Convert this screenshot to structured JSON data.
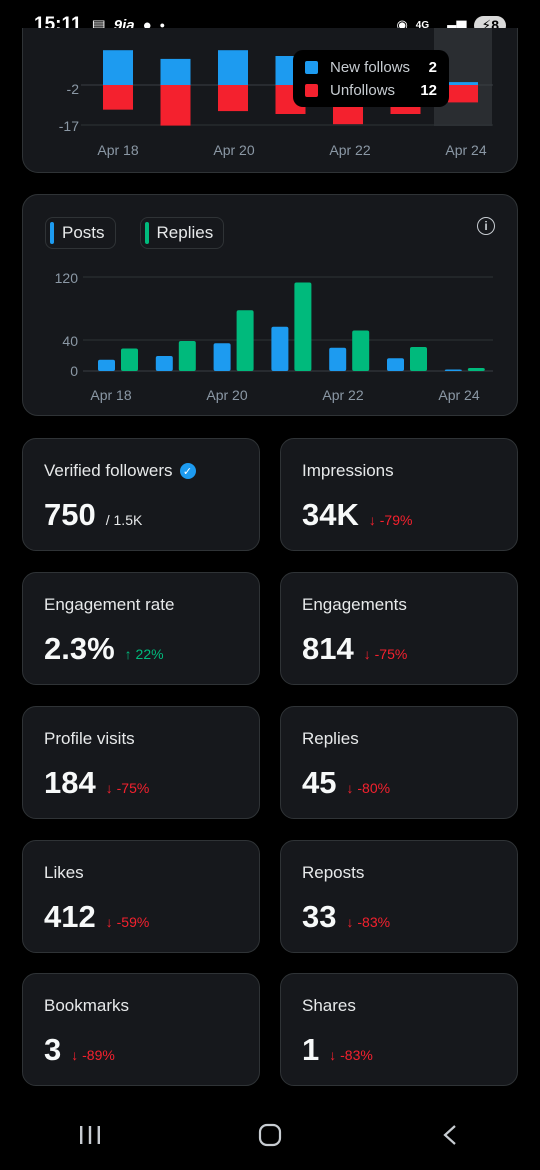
{
  "status_bar": {
    "time": "15:11",
    "app_icons": [
      "calendar-icon",
      "9ja",
      "chat-icon"
    ],
    "network": "4G",
    "battery": "8"
  },
  "follows_tooltip": {
    "new_follows_label": "New follows",
    "new_follows_value": "2",
    "unfollows_label": "Unfollows",
    "unfollows_value": "12"
  },
  "chart_data": [
    {
      "type": "bar",
      "categories": [
        "Apr 18",
        "Apr 19",
        "Apr 20",
        "Apr 21",
        "Apr 22",
        "Apr 23",
        "Apr 24"
      ],
      "x_tick_labels": [
        "Apr 18",
        "Apr 20",
        "Apr 22",
        "Apr 24"
      ],
      "y_tick_labels": [
        "-2",
        "-17"
      ],
      "series": [
        {
          "name": "New follows",
          "color": "#1d9bf0",
          "values": [
            24,
            18,
            24,
            20,
            8,
            14,
            2
          ]
        },
        {
          "name": "Unfollows",
          "color": "#f4212e",
          "values": [
            -17,
            -28,
            -18,
            -20,
            -27,
            -20,
            -12
          ]
        }
      ],
      "highlighted_category": "Apr 24"
    },
    {
      "type": "bar",
      "categories": [
        "Apr 18",
        "Apr 19",
        "Apr 20",
        "Apr 21",
        "Apr 22",
        "Apr 23",
        "Apr 24"
      ],
      "x_tick_labels": [
        "Apr 18",
        "Apr 20",
        "Apr 22",
        "Apr 24"
      ],
      "y_tick_labels": [
        "120",
        "40",
        "0"
      ],
      "ylim": [
        0,
        140
      ],
      "series": [
        {
          "name": "Posts",
          "color": "#1d9bf0",
          "values": [
            15,
            20,
            37,
            59,
            31,
            17,
            2
          ]
        },
        {
          "name": "Replies",
          "color": "#00ba7c",
          "values": [
            30,
            40,
            81,
            118,
            54,
            32,
            4
          ]
        }
      ]
    }
  ],
  "legend": {
    "posts": "Posts",
    "replies": "Replies"
  },
  "metrics": {
    "verified_followers": {
      "label": "Verified followers",
      "value": "750",
      "sub": "/ 1.5K"
    },
    "impressions": {
      "label": "Impressions",
      "value": "34K",
      "delta": "↓ -79%"
    },
    "engagement_rate": {
      "label": "Engagement rate",
      "value": "2.3%",
      "delta": "↑ 22%"
    },
    "engagements": {
      "label": "Engagements",
      "value": "814",
      "delta": "↓ -75%"
    },
    "profile_visits": {
      "label": "Profile visits",
      "value": "184",
      "delta": "↓ -75%"
    },
    "replies": {
      "label": "Replies",
      "value": "45",
      "delta": "↓ -80%"
    },
    "likes": {
      "label": "Likes",
      "value": "412",
      "delta": "↓ -59%"
    },
    "reposts": {
      "label": "Reposts",
      "value": "33",
      "delta": "↓ -83%"
    },
    "bookmarks": {
      "label": "Bookmarks",
      "value": "3",
      "delta": "↓ -89%"
    },
    "shares": {
      "label": "Shares",
      "value": "1",
      "delta": "↓ -83%"
    }
  }
}
